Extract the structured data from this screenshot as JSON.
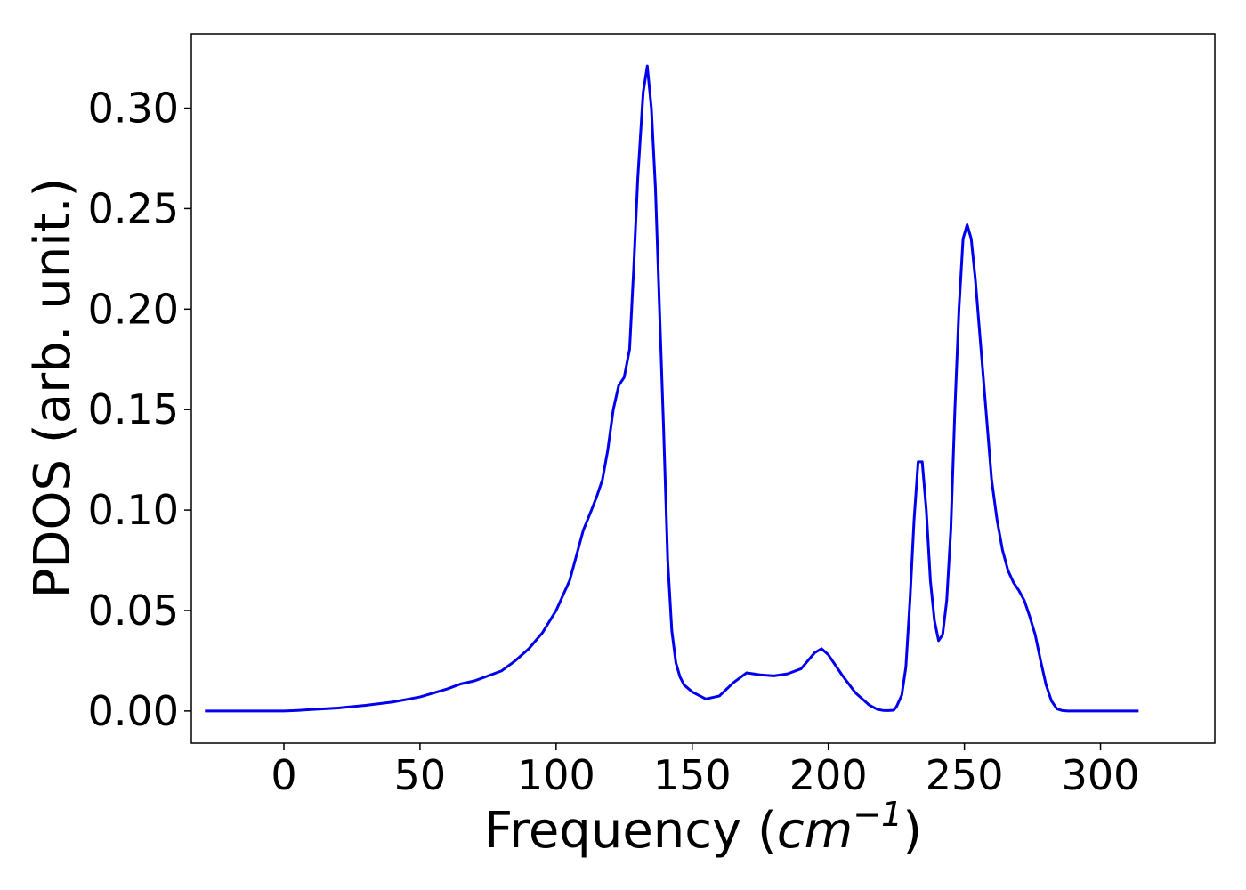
{
  "chart_data": {
    "type": "line",
    "title": "",
    "xlabel": "Frequency (",
    "xlabel_unit": "cm",
    "xlabel_exponent": "−1",
    "xlabel_close": ")",
    "ylabel": "PDOS (arb. unit.)",
    "xlim": [
      -34,
      342
    ],
    "ylim": [
      -0.016,
      0.337
    ],
    "xticks": [
      0,
      50,
      100,
      150,
      200,
      250,
      300
    ],
    "xtick_labels": [
      "0",
      "50",
      "100",
      "150",
      "200",
      "250",
      "300"
    ],
    "yticks": [
      0.0,
      0.05,
      0.1,
      0.15,
      0.2,
      0.25,
      0.3
    ],
    "ytick_labels": [
      "0.00",
      "0.05",
      "0.10",
      "0.15",
      "0.20",
      "0.25",
      "0.30"
    ],
    "grid": false,
    "line_color": "#0000ee",
    "series": [
      {
        "x": [
          -29,
          0,
          5,
          10,
          20,
          30,
          40,
          50,
          60,
          65,
          70,
          75,
          80,
          85,
          90,
          95,
          100,
          105,
          107,
          110,
          113,
          115,
          117,
          119,
          121,
          123,
          125,
          127,
          128.5,
          130,
          132,
          133.5,
          135,
          136.5,
          138,
          139.5,
          141,
          142.5,
          144,
          145.5,
          147,
          150,
          155,
          160,
          165,
          170,
          175,
          180,
          185,
          190,
          195,
          197.5,
          200,
          205,
          210,
          215,
          218,
          220,
          222,
          224,
          225,
          227,
          228.5,
          230,
          231.5,
          233,
          234.5,
          236,
          237.5,
          239,
          240.5,
          242,
          243.5,
          245,
          246.5,
          248,
          249.5,
          251,
          252.5,
          254,
          255.5,
          257,
          258.5,
          260,
          262,
          264,
          266,
          268,
          270,
          272,
          274,
          276,
          278,
          280,
          282,
          284,
          286,
          288,
          290,
          295,
          314
        ],
        "y": [
          0.0,
          0.0,
          0.0003,
          0.0007,
          0.0015,
          0.0028,
          0.0045,
          0.007,
          0.011,
          0.0135,
          0.015,
          0.0175,
          0.02,
          0.025,
          0.031,
          0.039,
          0.05,
          0.065,
          0.075,
          0.09,
          0.1,
          0.107,
          0.115,
          0.13,
          0.15,
          0.162,
          0.166,
          0.18,
          0.22,
          0.265,
          0.308,
          0.321,
          0.3,
          0.26,
          0.2,
          0.14,
          0.075,
          0.04,
          0.024,
          0.017,
          0.013,
          0.0095,
          0.006,
          0.0075,
          0.014,
          0.019,
          0.018,
          0.0175,
          0.0185,
          0.021,
          0.029,
          0.031,
          0.028,
          0.018,
          0.009,
          0.003,
          0.0008,
          0.0003,
          0.0002,
          0.0004,
          0.002,
          0.008,
          0.022,
          0.055,
          0.095,
          0.124,
          0.124,
          0.1,
          0.065,
          0.045,
          0.035,
          0.038,
          0.055,
          0.09,
          0.15,
          0.2,
          0.235,
          0.242,
          0.235,
          0.215,
          0.19,
          0.165,
          0.14,
          0.115,
          0.095,
          0.08,
          0.07,
          0.064,
          0.06,
          0.055,
          0.047,
          0.038,
          0.025,
          0.013,
          0.005,
          0.001,
          0.0002,
          0.0,
          0.0,
          0.0,
          0.0
        ]
      }
    ]
  }
}
